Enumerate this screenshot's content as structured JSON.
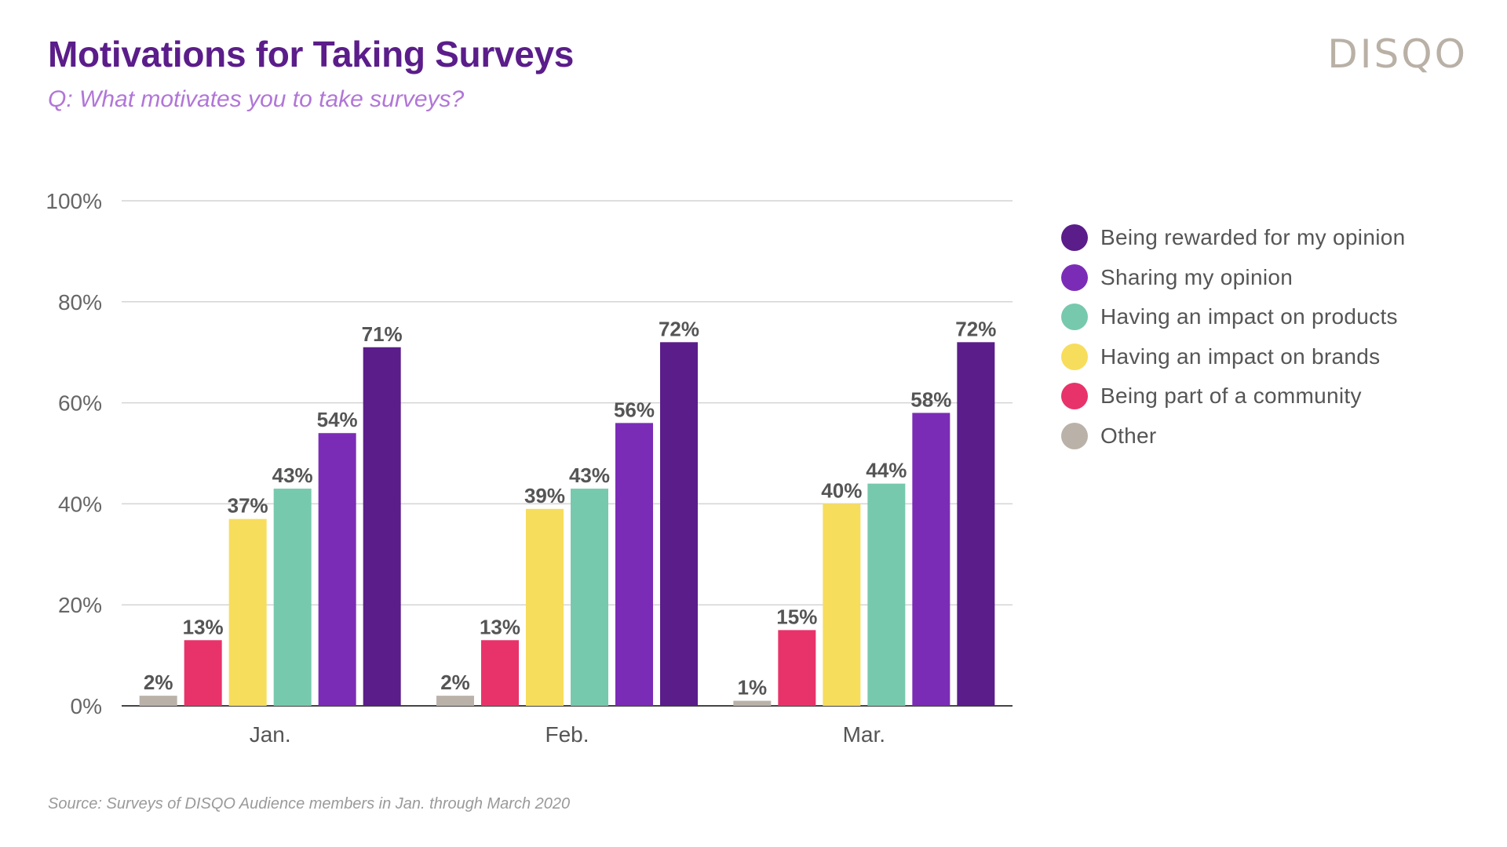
{
  "header": {
    "title": "Motivations for Taking Surveys",
    "subtitle": "Q: What motivates you to take surveys?",
    "logo": "DISQO"
  },
  "footer": {
    "source": "Source: Surveys of DISQO Audience members in Jan. through March 2020"
  },
  "chart_data": {
    "type": "bar",
    "title": "Motivations for Taking Surveys",
    "xlabel": "",
    "ylabel": "",
    "ylim": [
      0,
      100
    ],
    "yticks": [
      "0%",
      "20%",
      "40%",
      "60%",
      "80%",
      "100%"
    ],
    "ytick_values": [
      0,
      20,
      40,
      60,
      80,
      100
    ],
    "grid": true,
    "legend_position": "right",
    "categories": [
      "Jan.",
      "Feb.",
      "Mar."
    ],
    "series": [
      {
        "name": "Other",
        "color": "#bab2a9",
        "values": [
          2,
          2,
          1
        ],
        "labels": [
          "2%",
          "2%",
          "1%"
        ]
      },
      {
        "name": "Being part of a community",
        "color": "#e8336a",
        "values": [
          13,
          13,
          15
        ],
        "labels": [
          "13%",
          "13%",
          "15%"
        ]
      },
      {
        "name": "Having an impact on brands",
        "color": "#f7dd5c",
        "values": [
          37,
          39,
          40
        ],
        "labels": [
          "37%",
          "39%",
          "40%"
        ]
      },
      {
        "name": "Having an impact on products",
        "color": "#77c9ad",
        "values": [
          43,
          43,
          44
        ],
        "labels": [
          "43%",
          "43%",
          "44%"
        ]
      },
      {
        "name": "Sharing my opinion",
        "color": "#7b2cb7",
        "values": [
          54,
          56,
          58
        ],
        "labels": [
          "54%",
          "56%",
          "58%"
        ]
      },
      {
        "name": "Being rewarded for my opinion",
        "color": "#5b1d8a",
        "values": [
          71,
          72,
          72
        ],
        "labels": [
          "71%",
          "72%",
          "72%"
        ]
      }
    ],
    "legend_order": [
      "Being rewarded for my opinion",
      "Sharing my opinion",
      "Having an impact on products",
      "Having an impact on brands",
      "Being part of a community",
      "Other"
    ]
  }
}
